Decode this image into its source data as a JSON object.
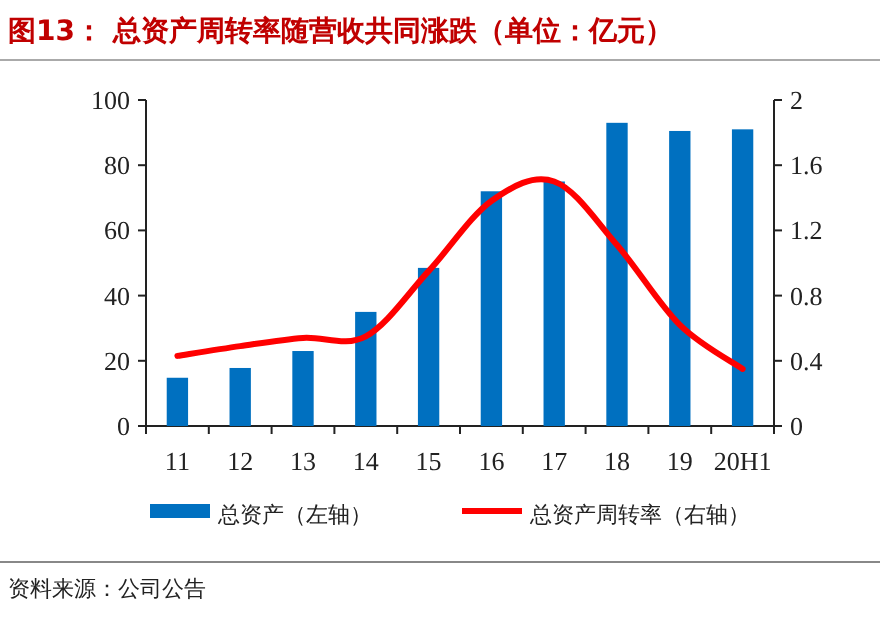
{
  "chart_data": {
    "type": "bar",
    "title": "图13：  总资产周转率随营收共同涨跌（单位：亿元）",
    "categories": [
      "11",
      "12",
      "13",
      "14",
      "15",
      "16",
      "17",
      "18",
      "19",
      "20H1"
    ],
    "series": [
      {
        "name": "总资产（左轴）",
        "color": "#0070c0",
        "values": [
          14.8,
          17.8,
          23,
          35,
          48.5,
          72,
          75,
          93,
          90.5,
          91
        ]
      },
      {
        "name": "总资产周转率（右轴）",
        "color": "#ff0000",
        "type": "line",
        "axis": "y2",
        "values": [
          0.43,
          0.49,
          0.54,
          0.55,
          0.95,
          1.38,
          1.5,
          1.11,
          0.62,
          0.35
        ]
      }
    ],
    "ylim": [
      0,
      100
    ],
    "yticks": [
      0,
      20,
      40,
      60,
      80,
      100
    ],
    "y2lim": [
      0,
      2
    ],
    "y2ticks": [
      0,
      0.4,
      0.8,
      1.2,
      1.6,
      2
    ],
    "legend": "bottom",
    "annotations": [
      "资料来源：公司公告"
    ]
  }
}
